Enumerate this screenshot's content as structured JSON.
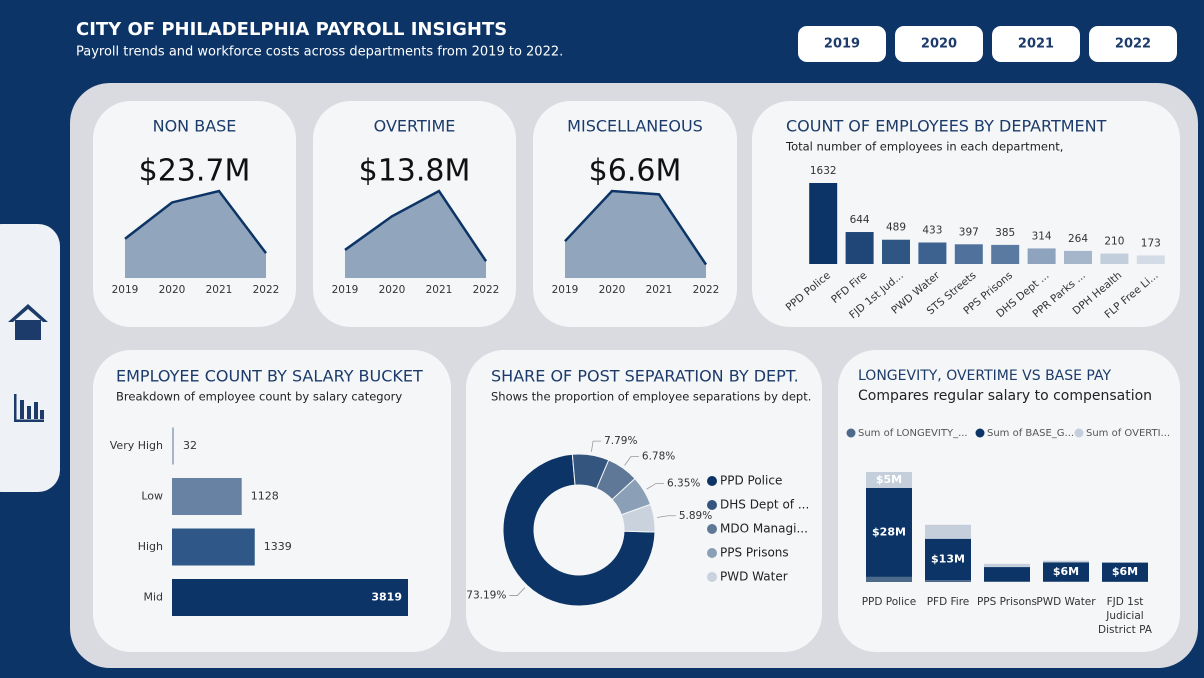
{
  "header": {
    "title": "CITY OF PHILADELPHIA PAYROLL INSIGHTS",
    "subtitle": "Payroll trends and workforce costs across departments from 2019 to 2022."
  },
  "year_buttons": [
    "2019",
    "2020",
    "2021",
    "2022"
  ],
  "chart_data": [
    {
      "type": "area",
      "title": "NON BASE",
      "kpi": "$23.7M",
      "x": [
        "2019",
        "2020",
        "2021",
        "2022"
      ],
      "values": [
        4.1,
        7.9,
        9.1,
        2.6
      ],
      "color": "#91a5bd",
      "line_color": "#0d3466"
    },
    {
      "type": "area",
      "title": "OVERTIME",
      "kpi": "$13.8M",
      "x": [
        "2019",
        "2020",
        "2021",
        "2022"
      ],
      "values": [
        2.0,
        4.4,
        6.2,
        1.2
      ],
      "color": "#91a5bd",
      "line_color": "#0d3466"
    },
    {
      "type": "area",
      "title": "MISCELLANEOUS",
      "kpi": "$6.6M",
      "x": [
        "2019",
        "2020",
        "2021",
        "2022"
      ],
      "values": [
        1.1,
        2.6,
        2.5,
        0.4
      ],
      "color": "#91a5bd",
      "line_color": "#0d3466"
    },
    {
      "type": "bar",
      "title": "COUNT OF EMPLOYEES BY DEPARTMENT",
      "subtitle": "Total number of employees in each department,",
      "categories": [
        "PPD Police",
        "PFD Fire",
        "FJD 1st Jud...",
        "PWD Water",
        "STS Streets",
        "PPS Prisons",
        "DHS Dept ...",
        "PPR Parks ...",
        "DPH Health",
        "FLP Free Li..."
      ],
      "values": [
        1632,
        644,
        489,
        433,
        397,
        385,
        314,
        264,
        210,
        173
      ],
      "colors": [
        "#0d3466",
        "#1f4677",
        "#2f5582",
        "#3e6290",
        "#50719b",
        "#5b7aa1",
        "#8ea3bd",
        "#a5b5ca",
        "#c2cedb",
        "#d3dce6"
      ]
    },
    {
      "type": "hbar",
      "title": "EMPLOYEE COUNT BY SALARY BUCKET",
      "subtitle": "Breakdown of employee count by salary category",
      "categories": [
        "Very High",
        "Low",
        "High",
        "Mid"
      ],
      "values": [
        32,
        1128,
        1339,
        3819
      ],
      "colors": [
        "#a6b5c8",
        "#6882a3",
        "#2f5888",
        "#0d3466"
      ]
    },
    {
      "type": "donut",
      "title": "SHARE OF POST SEPARATION BY DEPT.",
      "subtitle": "Shows the proportion of employee separations by dept.",
      "categories": [
        "PPD Police",
        "DHS Dept of ...",
        "MDO Managi...",
        "PPS Prisons",
        "PWD Water"
      ],
      "values": [
        73.19,
        7.79,
        6.78,
        6.35,
        5.89
      ],
      "value_labels": [
        "73.19%",
        "7.79%",
        "6.78%",
        "6.35%",
        "5.89%"
      ],
      "colors": [
        "#0d3466",
        "#34557e",
        "#5f7897",
        "#8b9fb6",
        "#c9d2dd"
      ]
    },
    {
      "type": "stacked_bar",
      "title": "LONGEVITY, OVERTIME VS BASE PAY",
      "subtitle": "Compares regular salary to compensation",
      "categories": [
        "PPD Police",
        "PFD Fire",
        "PPS Prisons",
        "PWD Water",
        "FJD 1st Judicial District PA"
      ],
      "series": [
        {
          "name": "Sum of LONGEVITY_...",
          "color": "#4d6a8a",
          "values": [
            1.6,
            0.6,
            0.2,
            0.2,
            0.1
          ],
          "value_labels": [
            null,
            null,
            null,
            null,
            null
          ]
        },
        {
          "name": "Sum of BASE_G...",
          "color": "#0d3466",
          "values": [
            28,
            13,
            4.5,
            6,
            6
          ],
          "value_labels": [
            "$28M",
            "$13M",
            null,
            "$6M",
            "$6M"
          ]
        },
        {
          "name": "Sum of OVERTI...",
          "color": "#c5cedb",
          "values": [
            5,
            4.4,
            1,
            0.5,
            0
          ],
          "value_labels": [
            "$5M",
            null,
            null,
            null,
            null
          ]
        }
      ]
    }
  ]
}
